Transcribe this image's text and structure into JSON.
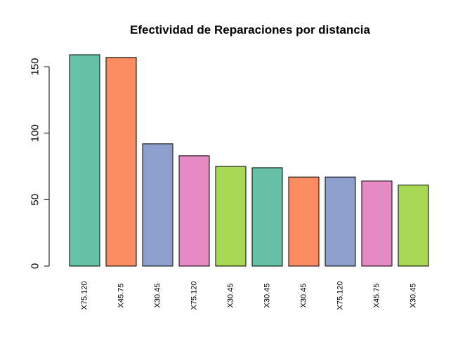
{
  "chart_data": {
    "type": "bar",
    "title": "Efectividad de Reparaciones por distancia",
    "xlabel": "",
    "ylabel": "",
    "categories": [
      "X75.120",
      "X45.75",
      "X30.45",
      "X75.120",
      "X30.45",
      "X30.45",
      "X30.45",
      "X75.120",
      "X45.75",
      "X30.45"
    ],
    "values": [
      159,
      157,
      92,
      83,
      75,
      74,
      67,
      67,
      64,
      61
    ],
    "colors": [
      "#66c2a5",
      "#fc8d62",
      "#8da0cb",
      "#e78ac3",
      "#a6d854",
      "#66c2a5",
      "#fc8d62",
      "#8da0cb",
      "#e78ac3",
      "#a6d854"
    ],
    "ylim": [
      0,
      159
    ],
    "yticks": [
      0,
      50,
      100,
      150
    ],
    "ytick_labels": [
      "0",
      "50",
      "100",
      "150"
    ],
    "grid": false,
    "legend": "none"
  }
}
